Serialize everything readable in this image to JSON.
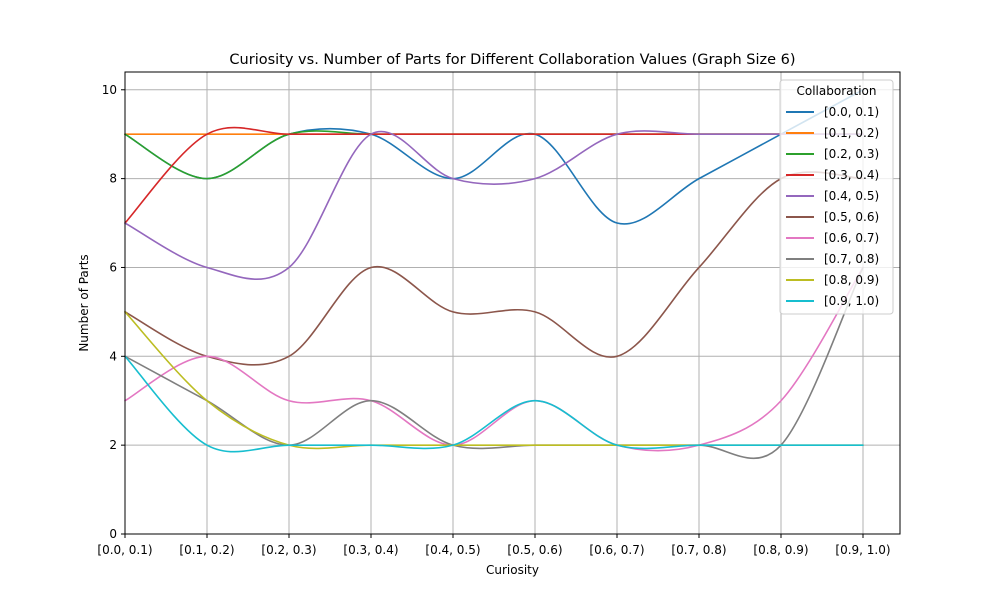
{
  "chart_data": {
    "type": "line",
    "title": "Curiosity vs. Number of Parts for Different Collaboration Values (Graph Size 6)",
    "xlabel": "Curiosity",
    "ylabel": "Number of Parts",
    "categories": [
      "[0.0, 0.1)",
      "[0.1, 0.2)",
      "[0.2, 0.3)",
      "[0.3, 0.4)",
      "[0.4, 0.5)",
      "[0.5, 0.6)",
      "[0.6, 0.7)",
      "[0.7, 0.8)",
      "[0.8, 0.9)",
      "[0.9, 1.0)"
    ],
    "ylim": [
      0,
      10.4
    ],
    "yticks": [
      0,
      2,
      4,
      6,
      8,
      10
    ],
    "grid": true,
    "smoothed": true,
    "legend": {
      "title": "Collaboration",
      "placement": "top-right"
    },
    "series": [
      {
        "name": "[0.0, 0.1)",
        "color": "#1f77b4",
        "values": [
          9,
          8,
          9,
          9,
          8,
          9,
          7,
          8,
          9,
          10
        ]
      },
      {
        "name": "[0.1, 0.2)",
        "color": "#ff7f0e",
        "values": [
          9,
          9,
          9,
          9,
          9,
          9,
          9,
          9,
          9,
          9
        ]
      },
      {
        "name": "[0.2, 0.3)",
        "color": "#2ca02c",
        "values": [
          9,
          8,
          9,
          9,
          9,
          9,
          9,
          9,
          9,
          9
        ]
      },
      {
        "name": "[0.3, 0.4)",
        "color": "#d62728",
        "values": [
          7,
          9,
          9,
          9,
          9,
          9,
          9,
          9,
          9,
          9
        ]
      },
      {
        "name": "[0.4, 0.5)",
        "color": "#9467bd",
        "values": [
          7,
          6,
          6,
          9,
          8,
          8,
          9,
          9,
          9,
          9
        ]
      },
      {
        "name": "[0.5, 0.6)",
        "color": "#8c564b",
        "values": [
          5,
          4,
          4,
          6,
          5,
          5,
          4,
          6,
          8,
          8
        ]
      },
      {
        "name": "[0.6, 0.7)",
        "color": "#e377c2",
        "values": [
          3,
          4,
          3,
          3,
          2,
          3,
          2,
          2,
          3,
          6
        ]
      },
      {
        "name": "[0.7, 0.8)",
        "color": "#7f7f7f",
        "values": [
          4,
          3,
          2,
          3,
          2,
          2,
          2,
          2,
          2,
          6
        ]
      },
      {
        "name": "[0.8, 0.9)",
        "color": "#bcbd22",
        "values": [
          5,
          3,
          2,
          2,
          2,
          2,
          2,
          2,
          2,
          2
        ]
      },
      {
        "name": "[0.9, 1.0)",
        "color": "#17becf",
        "values": [
          4,
          2,
          2,
          2,
          2,
          3,
          2,
          2,
          2,
          2
        ]
      }
    ]
  }
}
